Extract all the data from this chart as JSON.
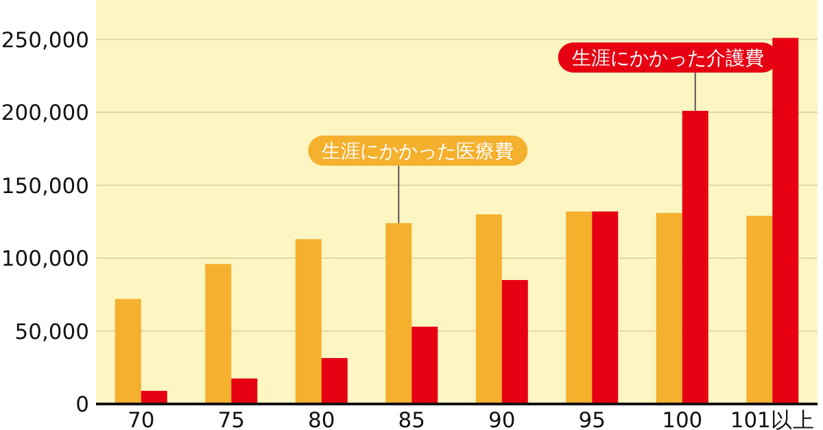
{
  "chart_data": {
    "type": "bar",
    "categories": [
      "70",
      "75",
      "80",
      "85",
      "90",
      "95",
      "100",
      "101以上"
    ],
    "series": [
      {
        "name": "生涯にかかった医療費",
        "color": "#f5b02e",
        "values": [
          72000,
          96000,
          113000,
          124000,
          130000,
          132000,
          131000,
          129000
        ]
      },
      {
        "name": "生涯にかかった介護費",
        "color": "#e60012",
        "values": [
          9000,
          17500,
          31500,
          53000,
          85000,
          132000,
          201000,
          251000
        ]
      }
    ],
    "ylim": [
      0,
      277000
    ],
    "yticks": [
      {
        "value": 0,
        "label": "0"
      },
      {
        "value": 50000,
        "label": "50,000"
      },
      {
        "value": 100000,
        "label": "100,000"
      },
      {
        "value": 150000,
        "label": "150,000"
      },
      {
        "value": 200000,
        "label": "200,000"
      },
      {
        "value": 250000,
        "label": "250,000"
      }
    ],
    "grid": "y"
  }
}
